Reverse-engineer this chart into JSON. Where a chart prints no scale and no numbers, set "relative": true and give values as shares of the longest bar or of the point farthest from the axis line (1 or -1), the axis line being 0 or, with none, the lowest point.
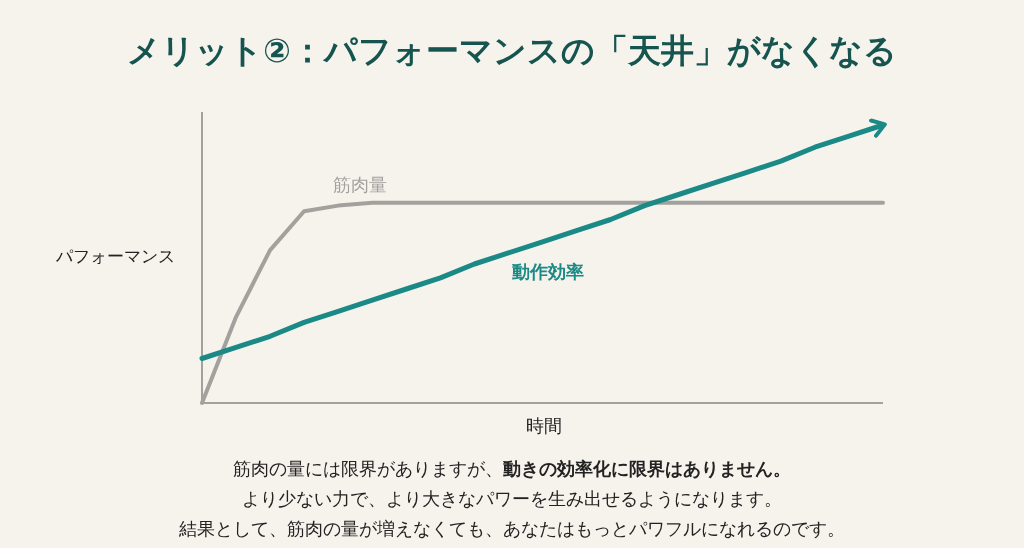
{
  "chart_data": {
    "type": "line",
    "relative": true,
    "title": "メリット②：パフォーマンスの「天井」がなくなる",
    "xlabel": "時間",
    "ylabel": "パフォーマンス",
    "legend": false,
    "marker": "none",
    "line_style": "solid",
    "categories": [
      null,
      null,
      null,
      null,
      null,
      null,
      null,
      null,
      null,
      null,
      null,
      null,
      null,
      null,
      null,
      null,
      null,
      null,
      null,
      null,
      null
    ],
    "series": [
      {
        "name": "筋肉量",
        "color": "#a3a19d",
        "values": [
          0,
          0.31,
          0.55,
          0.69,
          0.71,
          0.72,
          0.72,
          0.72,
          0.72,
          0.72,
          0.72,
          0.72,
          0.72,
          0.72,
          0.72,
          0.72,
          0.72,
          0.72,
          0.72,
          0.72,
          0.72
        ]
      },
      {
        "name": "動作効率",
        "color": "#1b8a86",
        "values": [
          0.16,
          0.2,
          0.24,
          0.29,
          0.33,
          0.37,
          0.41,
          0.45,
          0.5,
          0.54,
          0.58,
          0.62,
          0.66,
          0.71,
          0.75,
          0.79,
          0.83,
          0.87,
          0.92,
          0.96,
          1
        ]
      }
    ],
    "annotations": [
      "筋肉の量には限界がありますが、**動きの効率化に限界はありません。**",
      "より少ない力で、より大きなパワーを生み出せるようになります。",
      "結果として、筋肉の量が増えなくても、あなたはもっとパワフルになれるのです。"
    ]
  }
}
